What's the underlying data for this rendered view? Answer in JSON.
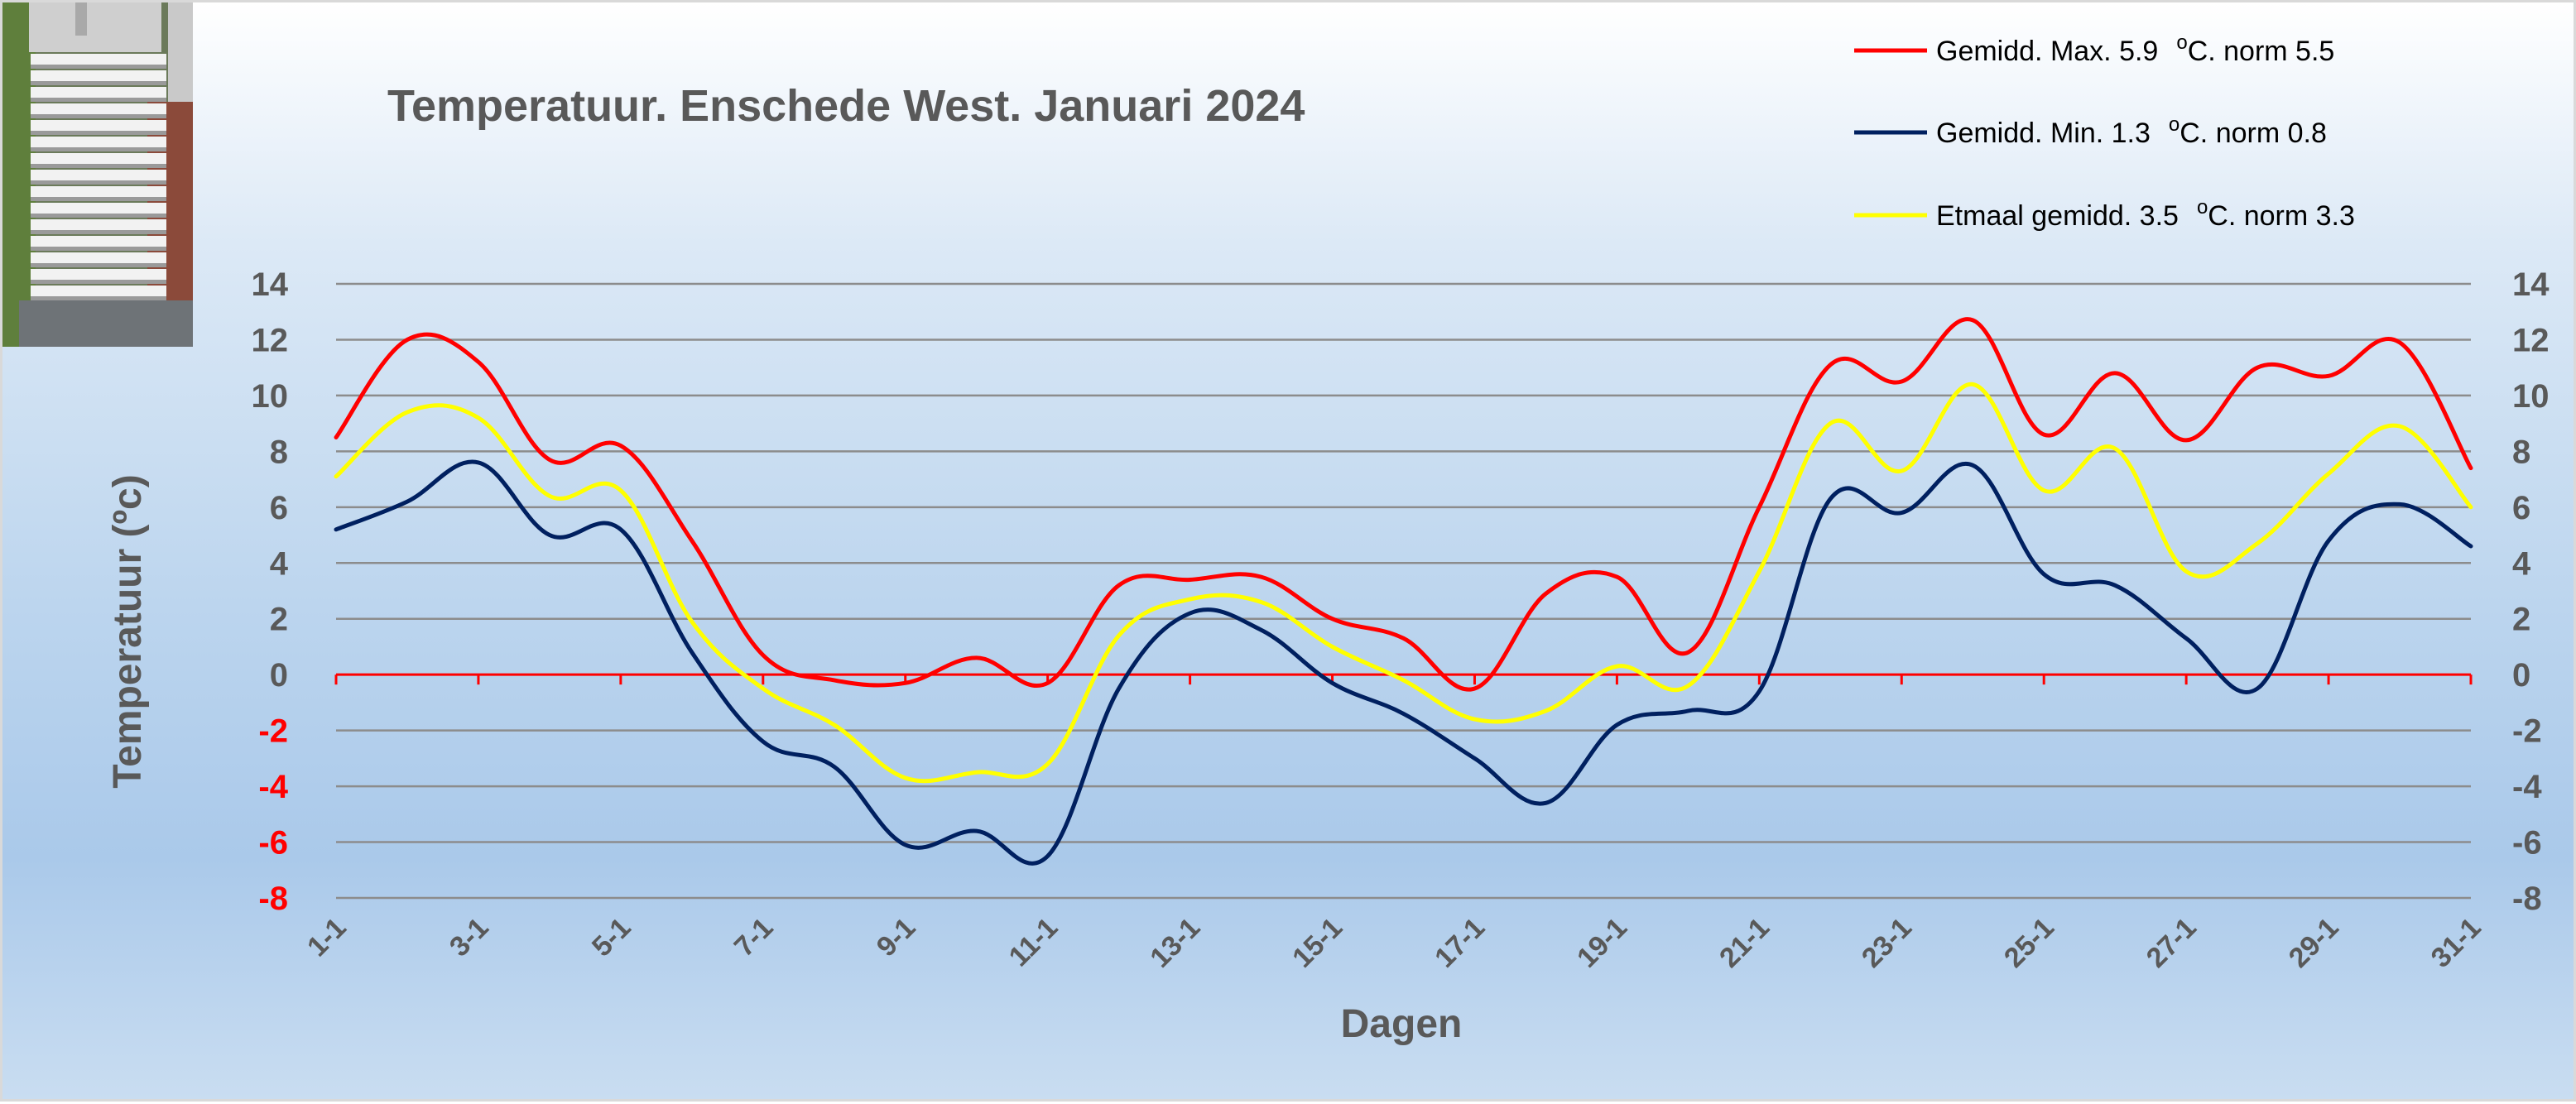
{
  "colors": {
    "max": "#ff0000",
    "min": "#002060",
    "avg": "#ffff00",
    "zero_line": "#ff0000"
  },
  "chart_data": {
    "type": "line",
    "title": "Temperatuur. Enschede West. Januari 2024",
    "xlabel": "Dagen",
    "ylabel": "Temperatuur (ºc)",
    "ylim": [
      -8,
      14
    ],
    "y_ticks": [
      14,
      12,
      10,
      8,
      6,
      4,
      2,
      0,
      -2,
      -4,
      -6,
      -8
    ],
    "grid": true,
    "legend_position": "top-right",
    "x": [
      "1-1",
      "2-1",
      "3-1",
      "4-1",
      "5-1",
      "6-1",
      "7-1",
      "8-1",
      "9-1",
      "10-1",
      "11-1",
      "12-1",
      "13-1",
      "14-1",
      "15-1",
      "16-1",
      "17-1",
      "18-1",
      "19-1",
      "20-1",
      "21-1",
      "22-1",
      "23-1",
      "24-1",
      "25-1",
      "26-1",
      "27-1",
      "28-1",
      "29-1",
      "30-1",
      "31-1"
    ],
    "x_tick_labels": [
      "1-1",
      "3-1",
      "5-1",
      "7-1",
      "9-1",
      "11-1",
      "13-1",
      "15-1",
      "17-1",
      "19-1",
      "21-1",
      "23-1",
      "25-1",
      "27-1",
      "29-1",
      "31-1"
    ],
    "series": [
      {
        "name": "Gemidd. Max. 5.9",
        "legend_unit": "C. norm 5.5",
        "color_key": "max",
        "values": [
          8.5,
          12.0,
          11.2,
          7.7,
          8.2,
          4.8,
          0.7,
          -0.2,
          -0.3,
          0.6,
          -0.3,
          3.2,
          3.4,
          3.5,
          2.0,
          1.3,
          -0.5,
          2.9,
          3.5,
          0.8,
          6.0,
          11.1,
          10.5,
          12.7,
          8.6,
          10.8,
          8.4,
          11.0,
          10.7,
          11.9,
          7.4
        ]
      },
      {
        "name": "Gemidd. Min. 1.3",
        "legend_unit": "C. norm 0.8",
        "color_key": "min",
        "values": [
          5.2,
          6.2,
          7.6,
          5.0,
          5.2,
          0.8,
          -2.4,
          -3.3,
          -6.1,
          -5.6,
          -6.5,
          -0.5,
          2.2,
          1.6,
          -0.3,
          -1.4,
          -3.0,
          -4.6,
          -1.8,
          -1.3,
          -0.6,
          6.3,
          5.8,
          7.5,
          3.6,
          3.2,
          1.3,
          -0.5,
          4.8,
          6.1,
          4.6
        ]
      },
      {
        "name": "Etmaal gemidd. 3.5",
        "legend_unit": "C. norm 3.3",
        "color_key": "avg",
        "values": [
          7.1,
          9.4,
          9.2,
          6.4,
          6.6,
          1.9,
          -0.5,
          -1.8,
          -3.7,
          -3.5,
          -3.2,
          1.4,
          2.7,
          2.6,
          1.0,
          -0.2,
          -1.6,
          -1.3,
          0.3,
          -0.4,
          3.7,
          9.0,
          7.3,
          10.4,
          6.6,
          8.1,
          3.7,
          4.7,
          7.2,
          8.9,
          6.0
        ]
      }
    ]
  }
}
